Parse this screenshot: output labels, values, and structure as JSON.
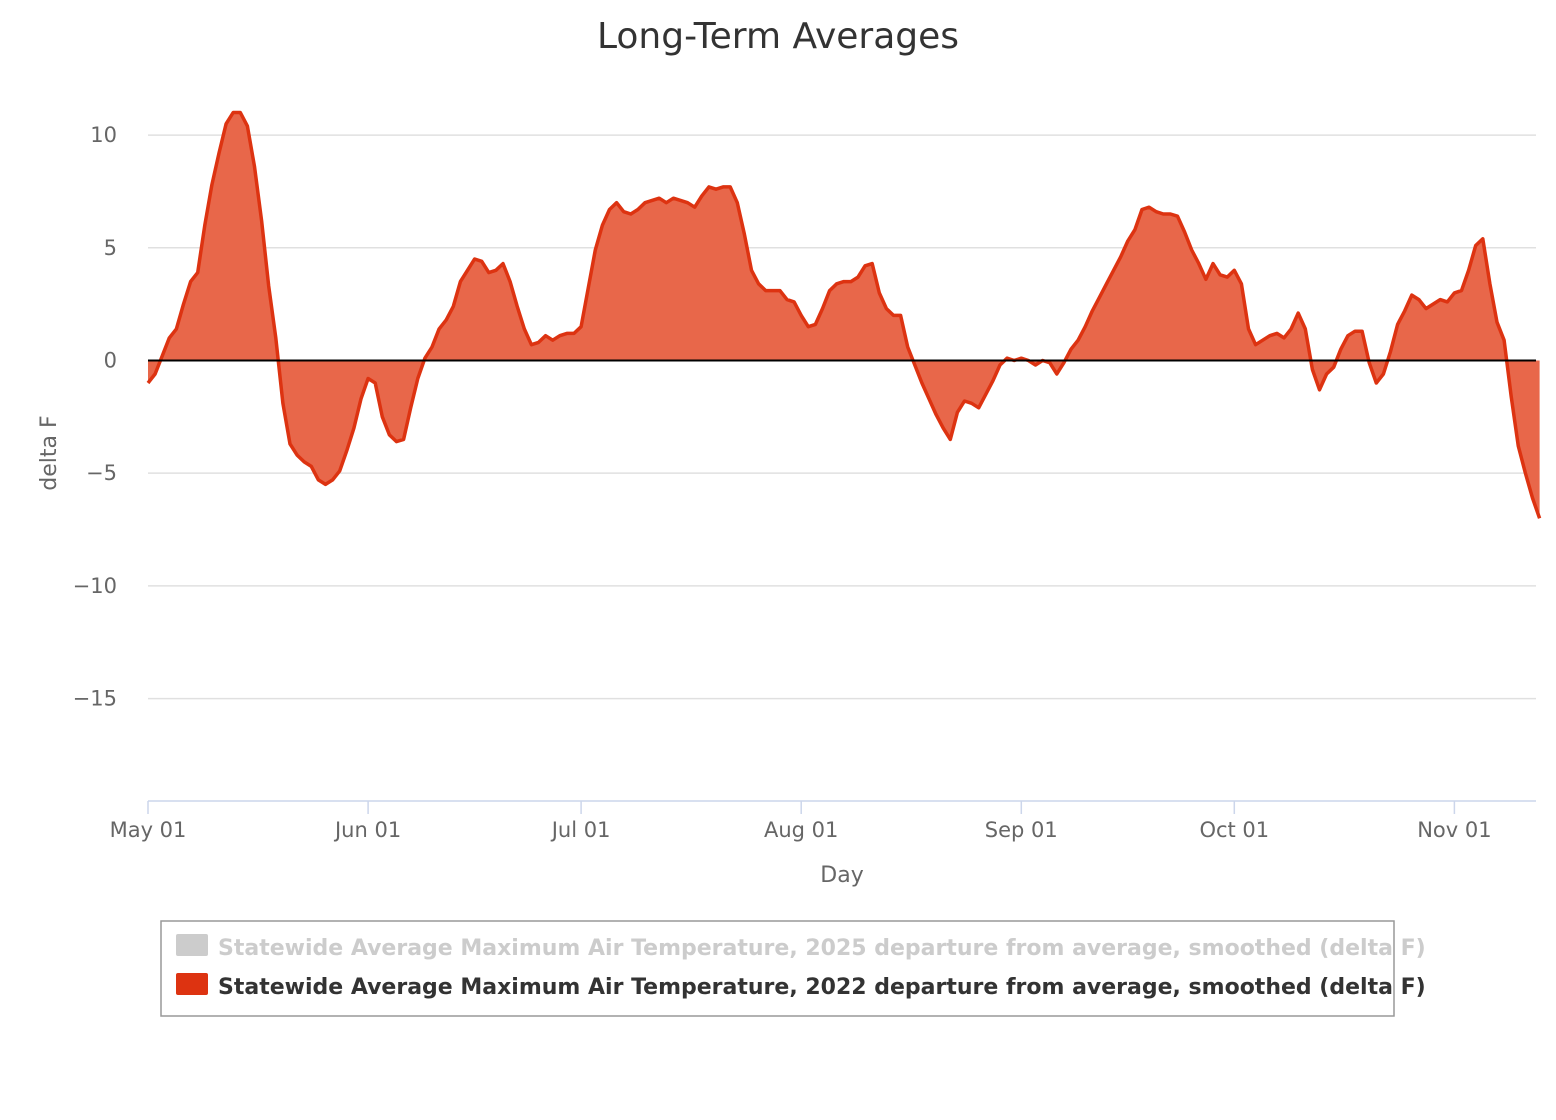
{
  "colors": {
    "series_2022": "#dd3311",
    "series_2022_fill": "#e8674a",
    "series_2025_hidden": "#cccccc",
    "zero_line": "#000000"
  },
  "chart_data": {
    "type": "area",
    "title": "Long-Term Averages",
    "xlabel": "Day",
    "ylabel": "delta F",
    "ylim": [
      -19.5,
      12
    ],
    "yticks": [
      10,
      5,
      0,
      -5,
      -10,
      -15
    ],
    "ytick_labels": [
      "10",
      "5",
      "0",
      "−5",
      "−10",
      "−15"
    ],
    "xlim": [
      "2022-05-01",
      "2022-11-13"
    ],
    "xticks": [
      "2022-05-01",
      "2022-06-01",
      "2022-07-01",
      "2022-08-01",
      "2022-09-01",
      "2022-10-01",
      "2022-11-01"
    ],
    "xtick_labels": [
      "May 01",
      "Jun 01",
      "Jul 01",
      "Aug 01",
      "Sep 01",
      "Oct 01",
      "Nov 01"
    ],
    "grid": true,
    "legend_position": "bottom",
    "series": [
      {
        "name": "Statewide Average Maximum Air Temperature, 2025 departure from average, smoothed (delta F)",
        "visible": false,
        "values": []
      },
      {
        "name": "Statewide Average Maximum Air Temperature, 2022 departure from average, smoothed (delta F)",
        "visible": true,
        "points": [
          [
            "2022-05-01",
            -1.0
          ],
          [
            "2022-05-02",
            -0.6
          ],
          [
            "2022-05-03",
            0.2
          ],
          [
            "2022-05-04",
            1.0
          ],
          [
            "2022-05-05",
            1.4
          ],
          [
            "2022-05-06",
            2.5
          ],
          [
            "2022-05-07",
            3.5
          ],
          [
            "2022-05-08",
            3.9
          ],
          [
            "2022-05-09",
            6.0
          ],
          [
            "2022-05-10",
            7.8
          ],
          [
            "2022-05-11",
            9.2
          ],
          [
            "2022-05-12",
            10.5
          ],
          [
            "2022-05-13",
            11.0
          ],
          [
            "2022-05-14",
            11.0
          ],
          [
            "2022-05-15",
            10.4
          ],
          [
            "2022-05-16",
            8.6
          ],
          [
            "2022-05-17",
            6.2
          ],
          [
            "2022-05-18",
            3.3
          ],
          [
            "2022-05-19",
            1.0
          ],
          [
            "2022-05-20",
            -1.9
          ],
          [
            "2022-05-21",
            -3.7
          ],
          [
            "2022-05-22",
            -4.2
          ],
          [
            "2022-05-23",
            -4.5
          ],
          [
            "2022-05-24",
            -4.7
          ],
          [
            "2022-05-25",
            -5.3
          ],
          [
            "2022-05-26",
            -5.5
          ],
          [
            "2022-05-27",
            -5.3
          ],
          [
            "2022-05-28",
            -4.9
          ],
          [
            "2022-05-29",
            -4.0
          ],
          [
            "2022-05-30",
            -3.0
          ],
          [
            "2022-05-31",
            -1.7
          ],
          [
            "2022-06-01",
            -0.8
          ],
          [
            "2022-06-02",
            -1.0
          ],
          [
            "2022-06-03",
            -2.5
          ],
          [
            "2022-06-04",
            -3.3
          ],
          [
            "2022-06-05",
            -3.6
          ],
          [
            "2022-06-06",
            -3.5
          ],
          [
            "2022-06-07",
            -2.1
          ],
          [
            "2022-06-08",
            -0.8
          ],
          [
            "2022-06-09",
            0.1
          ],
          [
            "2022-06-10",
            0.6
          ],
          [
            "2022-06-11",
            1.4
          ],
          [
            "2022-06-12",
            1.8
          ],
          [
            "2022-06-13",
            2.4
          ],
          [
            "2022-06-14",
            3.5
          ],
          [
            "2022-06-15",
            4.0
          ],
          [
            "2022-06-16",
            4.5
          ],
          [
            "2022-06-17",
            4.4
          ],
          [
            "2022-06-18",
            3.9
          ],
          [
            "2022-06-19",
            4.0
          ],
          [
            "2022-06-20",
            4.3
          ],
          [
            "2022-06-21",
            3.5
          ],
          [
            "2022-06-22",
            2.4
          ],
          [
            "2022-06-23",
            1.4
          ],
          [
            "2022-06-24",
            0.7
          ],
          [
            "2022-06-25",
            0.8
          ],
          [
            "2022-06-26",
            1.1
          ],
          [
            "2022-06-27",
            0.9
          ],
          [
            "2022-06-28",
            1.1
          ],
          [
            "2022-06-29",
            1.2
          ],
          [
            "2022-06-30",
            1.2
          ],
          [
            "2022-07-01",
            1.5
          ],
          [
            "2022-07-02",
            3.2
          ],
          [
            "2022-07-03",
            4.9
          ],
          [
            "2022-07-04",
            6.0
          ],
          [
            "2022-07-05",
            6.7
          ],
          [
            "2022-07-06",
            7.0
          ],
          [
            "2022-07-07",
            6.6
          ],
          [
            "2022-07-08",
            6.5
          ],
          [
            "2022-07-09",
            6.7
          ],
          [
            "2022-07-10",
            7.0
          ],
          [
            "2022-07-11",
            7.1
          ],
          [
            "2022-07-12",
            7.2
          ],
          [
            "2022-07-13",
            7.0
          ],
          [
            "2022-07-14",
            7.2
          ],
          [
            "2022-07-15",
            7.1
          ],
          [
            "2022-07-16",
            7.0
          ],
          [
            "2022-07-17",
            6.8
          ],
          [
            "2022-07-18",
            7.3
          ],
          [
            "2022-07-19",
            7.7
          ],
          [
            "2022-07-20",
            7.6
          ],
          [
            "2022-07-21",
            7.7
          ],
          [
            "2022-07-22",
            7.7
          ],
          [
            "2022-07-23",
            7.0
          ],
          [
            "2022-07-24",
            5.6
          ],
          [
            "2022-07-25",
            4.0
          ],
          [
            "2022-07-26",
            3.4
          ],
          [
            "2022-07-27",
            3.1
          ],
          [
            "2022-07-28",
            3.1
          ],
          [
            "2022-07-29",
            3.1
          ],
          [
            "2022-07-30",
            2.7
          ],
          [
            "2022-07-31",
            2.6
          ],
          [
            "2022-08-01",
            2.0
          ],
          [
            "2022-08-02",
            1.5
          ],
          [
            "2022-08-03",
            1.6
          ],
          [
            "2022-08-04",
            2.3
          ],
          [
            "2022-08-05",
            3.1
          ],
          [
            "2022-08-06",
            3.4
          ],
          [
            "2022-08-07",
            3.5
          ],
          [
            "2022-08-08",
            3.5
          ],
          [
            "2022-08-09",
            3.7
          ],
          [
            "2022-08-10",
            4.2
          ],
          [
            "2022-08-11",
            4.3
          ],
          [
            "2022-08-12",
            3.0
          ],
          [
            "2022-08-13",
            2.3
          ],
          [
            "2022-08-14",
            2.0
          ],
          [
            "2022-08-15",
            2.0
          ],
          [
            "2022-08-16",
            0.6
          ],
          [
            "2022-08-17",
            -0.2
          ],
          [
            "2022-08-18",
            -1.0
          ],
          [
            "2022-08-19",
            -1.7
          ],
          [
            "2022-08-20",
            -2.4
          ],
          [
            "2022-08-21",
            -3.0
          ],
          [
            "2022-08-22",
            -3.5
          ],
          [
            "2022-08-23",
            -2.3
          ],
          [
            "2022-08-24",
            -1.8
          ],
          [
            "2022-08-25",
            -1.9
          ],
          [
            "2022-08-26",
            -2.1
          ],
          [
            "2022-08-27",
            -1.5
          ],
          [
            "2022-08-28",
            -0.9
          ],
          [
            "2022-08-29",
            -0.2
          ],
          [
            "2022-08-30",
            0.1
          ],
          [
            "2022-08-31",
            0.0
          ],
          [
            "2022-09-01",
            0.1
          ],
          [
            "2022-09-02",
            0.0
          ],
          [
            "2022-09-03",
            -0.2
          ],
          [
            "2022-09-04",
            0.0
          ],
          [
            "2022-09-05",
            -0.1
          ],
          [
            "2022-09-06",
            -0.6
          ],
          [
            "2022-09-07",
            -0.1
          ],
          [
            "2022-09-08",
            0.5
          ],
          [
            "2022-09-09",
            0.9
          ],
          [
            "2022-09-10",
            1.5
          ],
          [
            "2022-09-11",
            2.2
          ],
          [
            "2022-09-12",
            2.8
          ],
          [
            "2022-09-13",
            3.4
          ],
          [
            "2022-09-14",
            4.0
          ],
          [
            "2022-09-15",
            4.6
          ],
          [
            "2022-09-16",
            5.3
          ],
          [
            "2022-09-17",
            5.8
          ],
          [
            "2022-09-18",
            6.7
          ],
          [
            "2022-09-19",
            6.8
          ],
          [
            "2022-09-20",
            6.6
          ],
          [
            "2022-09-21",
            6.5
          ],
          [
            "2022-09-22",
            6.5
          ],
          [
            "2022-09-23",
            6.4
          ],
          [
            "2022-09-24",
            5.7
          ],
          [
            "2022-09-25",
            4.9
          ],
          [
            "2022-09-26",
            4.3
          ],
          [
            "2022-09-27",
            3.6
          ],
          [
            "2022-09-28",
            4.3
          ],
          [
            "2022-09-29",
            3.8
          ],
          [
            "2022-09-30",
            3.7
          ],
          [
            "2022-10-01",
            4.0
          ],
          [
            "2022-10-02",
            3.4
          ],
          [
            "2022-10-03",
            1.4
          ],
          [
            "2022-10-04",
            0.7
          ],
          [
            "2022-10-05",
            0.9
          ],
          [
            "2022-10-06",
            1.1
          ],
          [
            "2022-10-07",
            1.2
          ],
          [
            "2022-10-08",
            1.0
          ],
          [
            "2022-10-09",
            1.4
          ],
          [
            "2022-10-10",
            2.1
          ],
          [
            "2022-10-11",
            1.4
          ],
          [
            "2022-10-12",
            -0.4
          ],
          [
            "2022-10-13",
            -1.3
          ],
          [
            "2022-10-14",
            -0.6
          ],
          [
            "2022-10-15",
            -0.3
          ],
          [
            "2022-10-16",
            0.5
          ],
          [
            "2022-10-17",
            1.1
          ],
          [
            "2022-10-18",
            1.3
          ],
          [
            "2022-10-19",
            1.3
          ],
          [
            "2022-10-20",
            -0.1
          ],
          [
            "2022-10-21",
            -1.0
          ],
          [
            "2022-10-22",
            -0.6
          ],
          [
            "2022-10-23",
            0.4
          ],
          [
            "2022-10-24",
            1.6
          ],
          [
            "2022-10-25",
            2.2
          ],
          [
            "2022-10-26",
            2.9
          ],
          [
            "2022-10-27",
            2.7
          ],
          [
            "2022-10-28",
            2.3
          ],
          [
            "2022-10-29",
            2.5
          ],
          [
            "2022-10-30",
            2.7
          ],
          [
            "2022-10-31",
            2.6
          ],
          [
            "2022-11-01",
            3.0
          ],
          [
            "2022-11-02",
            3.1
          ],
          [
            "2022-11-03",
            4.0
          ],
          [
            "2022-11-04",
            5.1
          ],
          [
            "2022-11-05",
            5.4
          ],
          [
            "2022-11-06",
            3.4
          ],
          [
            "2022-11-07",
            1.7
          ],
          [
            "2022-11-08",
            0.9
          ],
          [
            "2022-11-09",
            -1.6
          ],
          [
            "2022-11-10",
            -3.8
          ],
          [
            "2022-11-11",
            -5.0
          ],
          [
            "2022-11-12",
            -6.1
          ],
          [
            "2022-11-13",
            -7.0
          ]
        ]
      }
    ]
  }
}
